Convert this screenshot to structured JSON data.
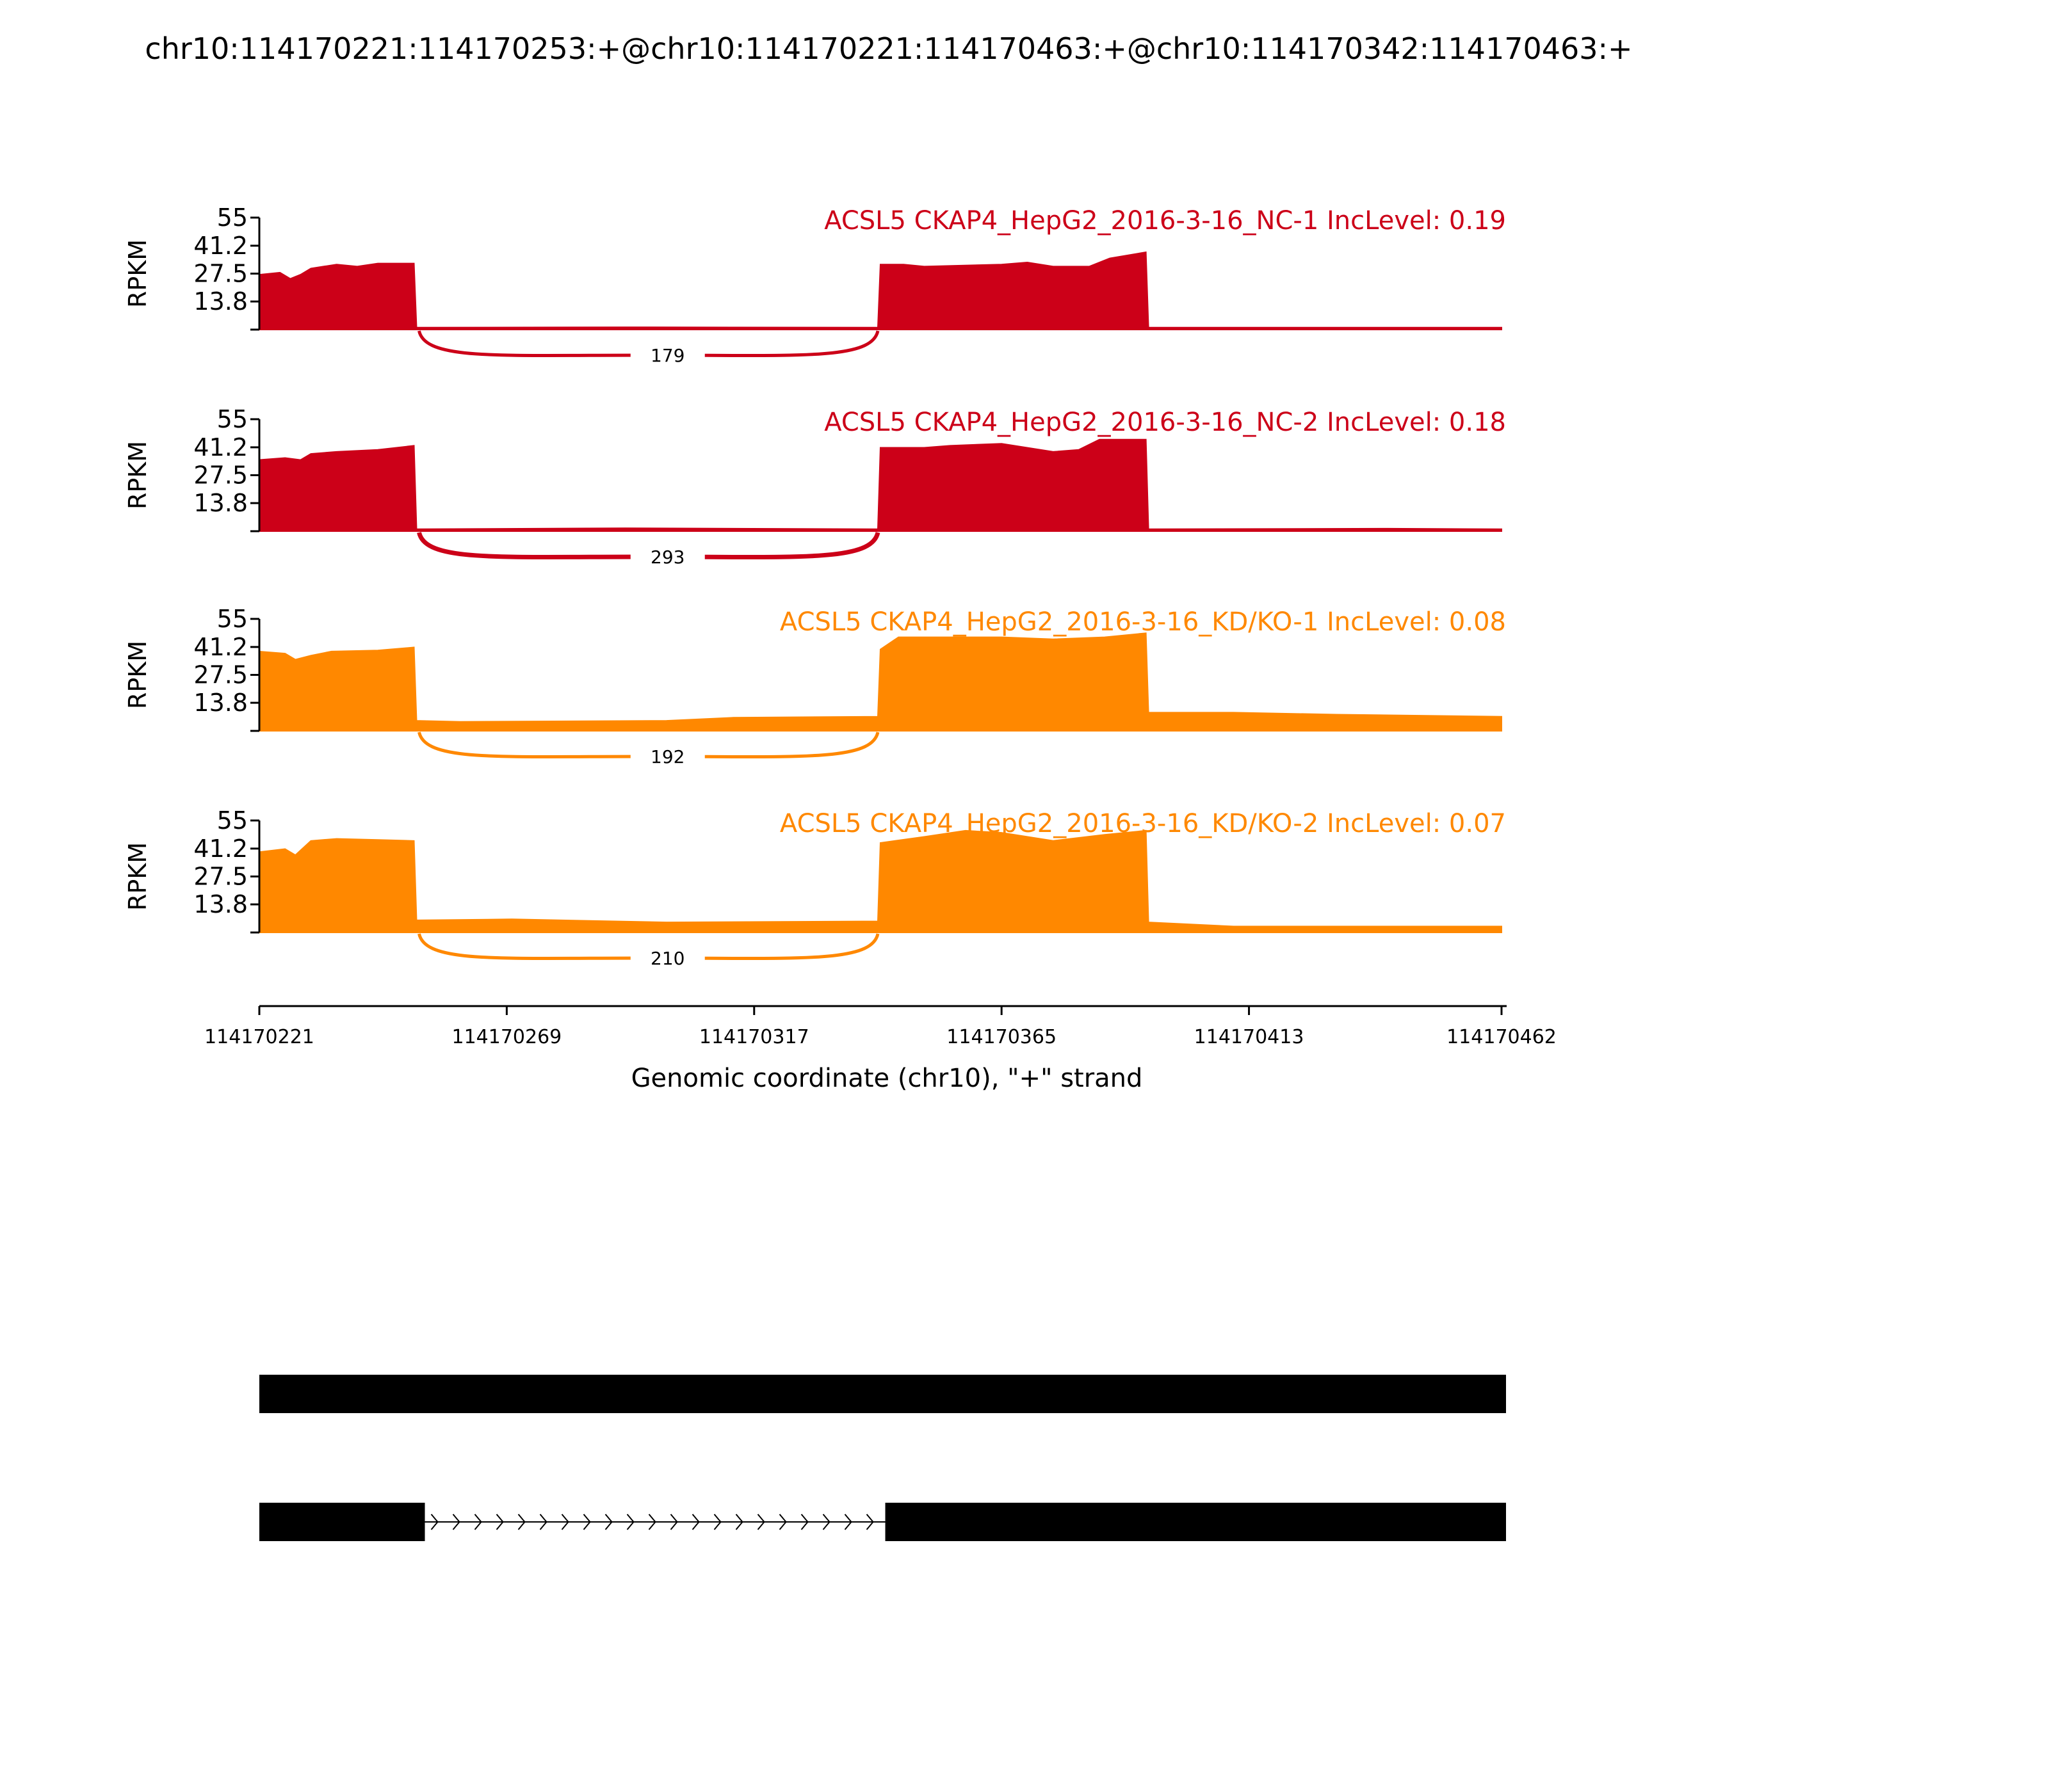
{
  "colors": {
    "nc": "#cc0018",
    "kd": "#ff8800",
    "axis": "#000000",
    "exon": "#000000"
  },
  "title": "chr10:114170221:114170253:+@chr10:114170221:114170463:+@chr10:114170342:114170463:+",
  "chart_data": {
    "type": "area",
    "title": "chr10:114170221:114170253:+@chr10:114170221:114170463:+@chr10:114170342:114170463:+",
    "xlabel": "Genomic coordinate (chr10), \"+\" strand",
    "ylabel": "RPKM",
    "xlim": [
      114170221,
      114170462
    ],
    "ylim": [
      0,
      55
    ],
    "xticks": [
      114170221,
      114170269,
      114170317,
      114170365,
      114170413,
      114170462
    ],
    "xtick_labels": [
      "114170221",
      "114170269",
      "114170317",
      "114170365",
      "114170413",
      "114170462"
    ],
    "yticks": [
      13.8,
      27.5,
      41.2,
      55
    ],
    "ytick_labels": [
      "13.8",
      "27.5",
      "41.2",
      "55"
    ],
    "series": [
      {
        "name": "ACSL5 CKAP4_HepG2_2016-3-16_NC-1 IncLevel: 0.19",
        "color_key": "nc",
        "junction": {
          "from": 114170252,
          "to": 114170341,
          "count": "179"
        },
        "coverage": [
          [
            114170221,
            27
          ],
          [
            114170225,
            28
          ],
          [
            114170227,
            25
          ],
          [
            114170229,
            27
          ],
          [
            114170231,
            30
          ],
          [
            114170236,
            32
          ],
          [
            114170240,
            31
          ],
          [
            114170244,
            32.5
          ],
          [
            114170251,
            32.5
          ],
          [
            114170251.5,
            1
          ],
          [
            114170292,
            1.2
          ],
          [
            114170341,
            1
          ],
          [
            114170341.5,
            32
          ],
          [
            114170346,
            32
          ],
          [
            114170350,
            31
          ],
          [
            114170365,
            32
          ],
          [
            114170370,
            33
          ],
          [
            114170375,
            31
          ],
          [
            114170382,
            31
          ],
          [
            114170386,
            35
          ],
          [
            114170393,
            38
          ],
          [
            114170393.5,
            1
          ],
          [
            114170462,
            1
          ]
        ]
      },
      {
        "name": "ACSL5 CKAP4_HepG2_2016-3-16_NC-2 IncLevel: 0.18",
        "color_key": "nc",
        "junction": {
          "from": 114170252,
          "to": 114170341,
          "count": "293"
        },
        "coverage": [
          [
            114170221,
            35
          ],
          [
            114170226,
            36
          ],
          [
            114170229,
            35
          ],
          [
            114170231,
            38
          ],
          [
            114170236,
            39
          ],
          [
            114170244,
            40
          ],
          [
            114170251,
            42
          ],
          [
            114170251.5,
            1
          ],
          [
            114170292,
            1.5
          ],
          [
            114170341,
            1
          ],
          [
            114170341.5,
            41
          ],
          [
            114170350,
            41
          ],
          [
            114170355,
            42
          ],
          [
            114170365,
            43
          ],
          [
            114170375,
            39
          ],
          [
            114170380,
            40
          ],
          [
            114170384,
            45
          ],
          [
            114170393,
            45
          ],
          [
            114170393.5,
            1
          ],
          [
            114170440,
            1.3
          ],
          [
            114170462,
            1
          ]
        ]
      },
      {
        "name": "ACSL5 CKAP4_HepG2_2016-3-16_KD/KO-1 IncLevel: 0.08",
        "color_key": "kd",
        "junction": {
          "from": 114170252,
          "to": 114170341,
          "count": "192"
        },
        "coverage": [
          [
            114170221,
            39
          ],
          [
            114170226,
            38
          ],
          [
            114170228,
            35
          ],
          [
            114170231,
            37
          ],
          [
            114170235,
            39
          ],
          [
            114170244,
            39.5
          ],
          [
            114170251,
            41
          ],
          [
            114170251.5,
            5
          ],
          [
            114170260,
            4.5
          ],
          [
            114170300,
            5
          ],
          [
            114170313,
            6.5
          ],
          [
            114170341,
            7
          ],
          [
            114170341.5,
            40
          ],
          [
            114170345,
            46
          ],
          [
            114170365,
            46
          ],
          [
            114170375,
            45
          ],
          [
            114170385,
            46
          ],
          [
            114170393,
            48
          ],
          [
            114170393.5,
            9
          ],
          [
            114170410,
            9
          ],
          [
            114170430,
            8
          ],
          [
            114170462,
            7
          ]
        ]
      },
      {
        "name": "ACSL5 CKAP4_HepG2_2016-3-16_KD/KO-2 IncLevel: 0.07",
        "color_key": "kd",
        "junction": {
          "from": 114170252,
          "to": 114170341,
          "count": "210"
        },
        "coverage": [
          [
            114170221,
            39.5
          ],
          [
            114170226,
            41
          ],
          [
            114170228,
            38
          ],
          [
            114170231,
            45
          ],
          [
            114170236,
            46
          ],
          [
            114170244,
            45.5
          ],
          [
            114170251,
            45
          ],
          [
            114170251.5,
            6
          ],
          [
            114170270,
            6.5
          ],
          [
            114170300,
            5
          ],
          [
            114170341,
            5.5
          ],
          [
            114170341.5,
            44
          ],
          [
            114170350,
            47
          ],
          [
            114170358,
            50
          ],
          [
            114170365,
            49
          ],
          [
            114170375,
            45
          ],
          [
            114170385,
            48
          ],
          [
            114170393,
            50
          ],
          [
            114170393.5,
            5
          ],
          [
            114170410,
            3
          ],
          [
            114170462,
            3
          ]
        ]
      }
    ],
    "gene_models": [
      {
        "exons": [
          [
            114170221,
            114170462
          ]
        ]
      },
      {
        "exons": [
          [
            114170221,
            114170253
          ],
          [
            114170342,
            114170462
          ]
        ]
      }
    ]
  }
}
